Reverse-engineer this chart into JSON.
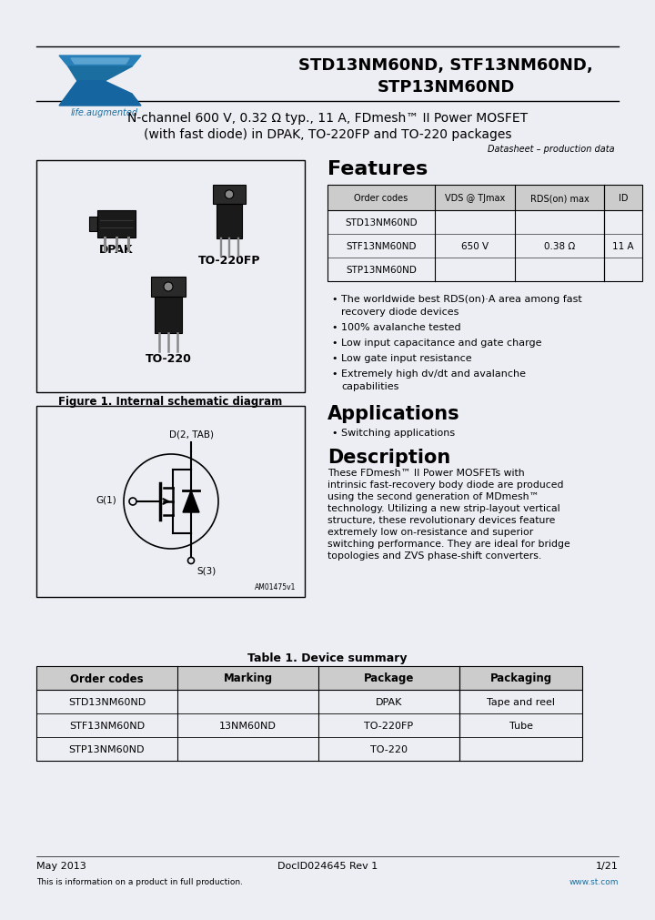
{
  "bg_color": "#eceef4",
  "title_line1": "STD13NM60ND, STF13NM60ND,",
  "title_line2": "STP13NM60ND",
  "subtitle_line1": "N-channel 600 V, 0.32 Ω typ., 11 A, FDmesh™ II Power MOSFET",
  "subtitle_line2": "(with fast diode) in DPAK, TO-220FP and TO-220 packages",
  "datasheet_label": "Datasheet – production data",
  "features_title": "Features",
  "feat_hdr": [
    "Order codes",
    "VDS @ TJmax",
    "RDS(on) max",
    "ID"
  ],
  "feat_rows": [
    [
      "STD13NM60ND",
      "",
      "",
      ""
    ],
    [
      "STF13NM60ND",
      "650 V",
      "0.38 Ω",
      "11 A"
    ],
    [
      "STP13NM60ND",
      "",
      "",
      ""
    ]
  ],
  "bullets": [
    "The worldwide best RDS(on)·A area among fast\nrecovery diode devices",
    "100% avalanche tested",
    "Low input capacitance and gate charge",
    "Low gate input resistance",
    "Extremely high dv/dt and avalanche\ncapabilities"
  ],
  "applications_title": "Applications",
  "app_bullets": [
    "Switching applications"
  ],
  "description_title": "Description",
  "description_text": "These FDmesh™ II Power MOSFETs with\nintrinsic fast-recovery body diode are produced\nusing the second generation of MDmesh™\ntechnology. Utilizing a new strip-layout vertical\nstructure, these revolutionary devices feature\nextremely low on-resistance and superior\nswitching performance. They are ideal for bridge\ntopologies and ZVS phase-shift converters.",
  "figure_caption": "Figure 1. Internal schematic diagram",
  "table2_title": "Table 1. Device summary",
  "table2_headers": [
    "Order codes",
    "Marking",
    "Package",
    "Packaging"
  ],
  "footer_left": "May 2013",
  "footer_center": "DocID024645 Rev 1",
  "footer_right": "1/21",
  "footer_note": "This is information on a product in full production.",
  "footer_url": "www.st.com",
  "blue": "#1a6ea0",
  "black": "#000000",
  "white": "#ffffff",
  "gray_hdr": "#cccccc",
  "line_color": "#333333"
}
